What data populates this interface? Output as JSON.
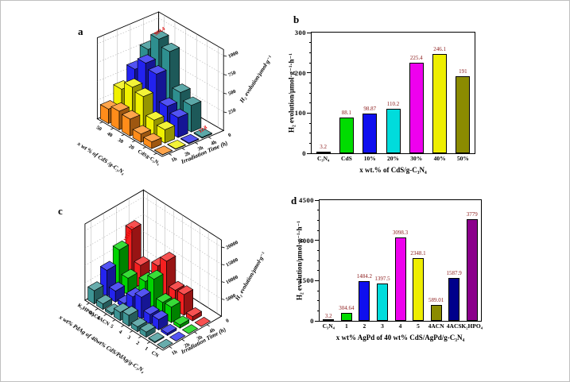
{
  "figure": {
    "background": "#ffffff"
  },
  "panel_letters": [
    "a",
    "b",
    "c",
    "d"
  ],
  "annotation_color": "#e00000",
  "value_label_color": "#8b1a1a",
  "chart_data": [
    {
      "panel": "a",
      "type": "bar3d",
      "x_label": "x wt % of CdS /g-C₃N₄",
      "y_label": "Irradiation Time (h)",
      "z_label": "H₂ evolution/μmol·g⁻¹",
      "categories": [
        "50",
        "40",
        "30",
        "20",
        "CdS",
        "g-C₃N₄"
      ],
      "times": [
        "1h",
        "2h",
        "3h",
        "4h"
      ],
      "series": [
        {
          "name": "1h",
          "values": [
            191,
            246.1,
            225.4,
            110.2,
            88.1,
            3.2
          ]
        },
        {
          "name": "2h",
          "values": [
            382,
            492.2,
            450.8,
            220.4,
            176.2,
            6.4
          ]
        },
        {
          "name": "3h",
          "values": [
            573,
            738.3,
            676.2,
            330.6,
            264.3,
            9.6
          ]
        },
        {
          "name": "4h",
          "values": [
            764,
            984.4,
            901.6,
            440.8,
            352.4,
            12.8
          ]
        }
      ],
      "row_colors": [
        "#ff8c1a",
        "#f0f000",
        "#2222f0",
        "#2e8f8f"
      ],
      "z_ticks": [
        0,
        250,
        500,
        750,
        1000
      ],
      "z_box_max": 1080,
      "annotations": [
        {
          "category": "40",
          "time": "4h",
          "text": "984.4"
        },
        {
          "category": "g-C₃N₄",
          "time": "4h",
          "text": "12.8"
        }
      ]
    },
    {
      "panel": "b",
      "type": "bar",
      "title": "",
      "xlabel": "x wt.% of CdS/g-C₃N₄",
      "ylabel": "H₂ evolution/μmol·g⁻¹·h⁻¹",
      "categories": [
        "C₃N₄",
        "CdS",
        "10%",
        "20%",
        "30%",
        "40%",
        "50%"
      ],
      "values": [
        3.2,
        88.1,
        98.87,
        110.2,
        225.4,
        246.1,
        191
      ],
      "value_labels": [
        "3.2",
        "88.1",
        "98.87",
        "110.2",
        "225.4",
        "246.1",
        "191"
      ],
      "bar_colors": [
        "#000000",
        "#00dc00",
        "#0f0fee",
        "#00dcdc",
        "#ee00ee",
        "#eeee00",
        "#8b8b00"
      ],
      "ylim": [
        0,
        300
      ],
      "yticks": [
        0,
        100,
        200,
        300
      ],
      "grid": false
    },
    {
      "panel": "c",
      "type": "bar3d",
      "x_label": "x wt% PdAg of 40wt% CdS/PdAg/g-C₃N₄",
      "y_label": "Irradiation Time (h)",
      "z_label": "H₂ evolution/μmol·g⁻¹",
      "categories": [
        "K₂HPO₄",
        "4ACS",
        "4ACN",
        "5",
        "4",
        "3",
        "2",
        "1",
        "CN"
      ],
      "times": [
        "1h",
        "2h",
        "3h",
        "4h"
      ],
      "series": [
        {
          "name": "1h",
          "values": [
            3779,
            1587.9,
            589.01,
            2348.1,
            3098.3,
            1397.5,
            1484.2,
            304.64,
            3.2
          ]
        },
        {
          "name": "2h",
          "values": [
            7558,
            3175.8,
            1178,
            4696.2,
            6196.6,
            2795,
            2968.4,
            609.3,
            6.4
          ]
        },
        {
          "name": "3h",
          "values": [
            11337,
            4763.7,
            1767,
            7044.3,
            9294.9,
            4192.5,
            4452.6,
            913.9,
            9.6
          ]
        },
        {
          "name": "4h",
          "values": [
            15116.3,
            6351.6,
            2356,
            9392.4,
            12393.2,
            5590,
            5936.8,
            1218.6,
            12.8
          ]
        }
      ],
      "row_colors": [
        "#3d9494",
        "#2424f0",
        "#00d400",
        "#f52020"
      ],
      "z_ticks": [
        0,
        5000,
        10000,
        15000,
        20000
      ],
      "z_box_max": 22000,
      "annotations": [
        {
          "category": "K₂HPO₄",
          "time": "4h",
          "text": "15116.3"
        }
      ]
    },
    {
      "panel": "d",
      "type": "bar",
      "title": "",
      "xlabel": "x wt%  AgPd  of  40 wt%  CdS/AgPd/g-C₃N₄",
      "ylabel": "H₂ evolution/μmol·g⁻¹·h⁻¹",
      "categories": [
        "C₃N₄",
        "1",
        "2",
        "3",
        "4",
        "5",
        "4ACN",
        "4ACS",
        "K₂HPO₄"
      ],
      "values": [
        3.2,
        304.64,
        1484.2,
        1397.5,
        3098.3,
        2348.1,
        589.01,
        1587.9,
        3779
      ],
      "value_labels": [
        "3.2",
        "304.64",
        "1484.2",
        "1397.5",
        "3098.3",
        "2348.1",
        "589.01",
        "1587.9",
        "3779"
      ],
      "bar_colors": [
        "#000000",
        "#00dc00",
        "#0f0fee",
        "#00dcdc",
        "#ee00ee",
        "#eeee00",
        "#8b8b00",
        "#00008b",
        "#8b008b"
      ],
      "ylim": [
        0,
        4500
      ],
      "yticks": [
        0,
        1500,
        3000,
        4500
      ],
      "grid": false
    }
  ]
}
